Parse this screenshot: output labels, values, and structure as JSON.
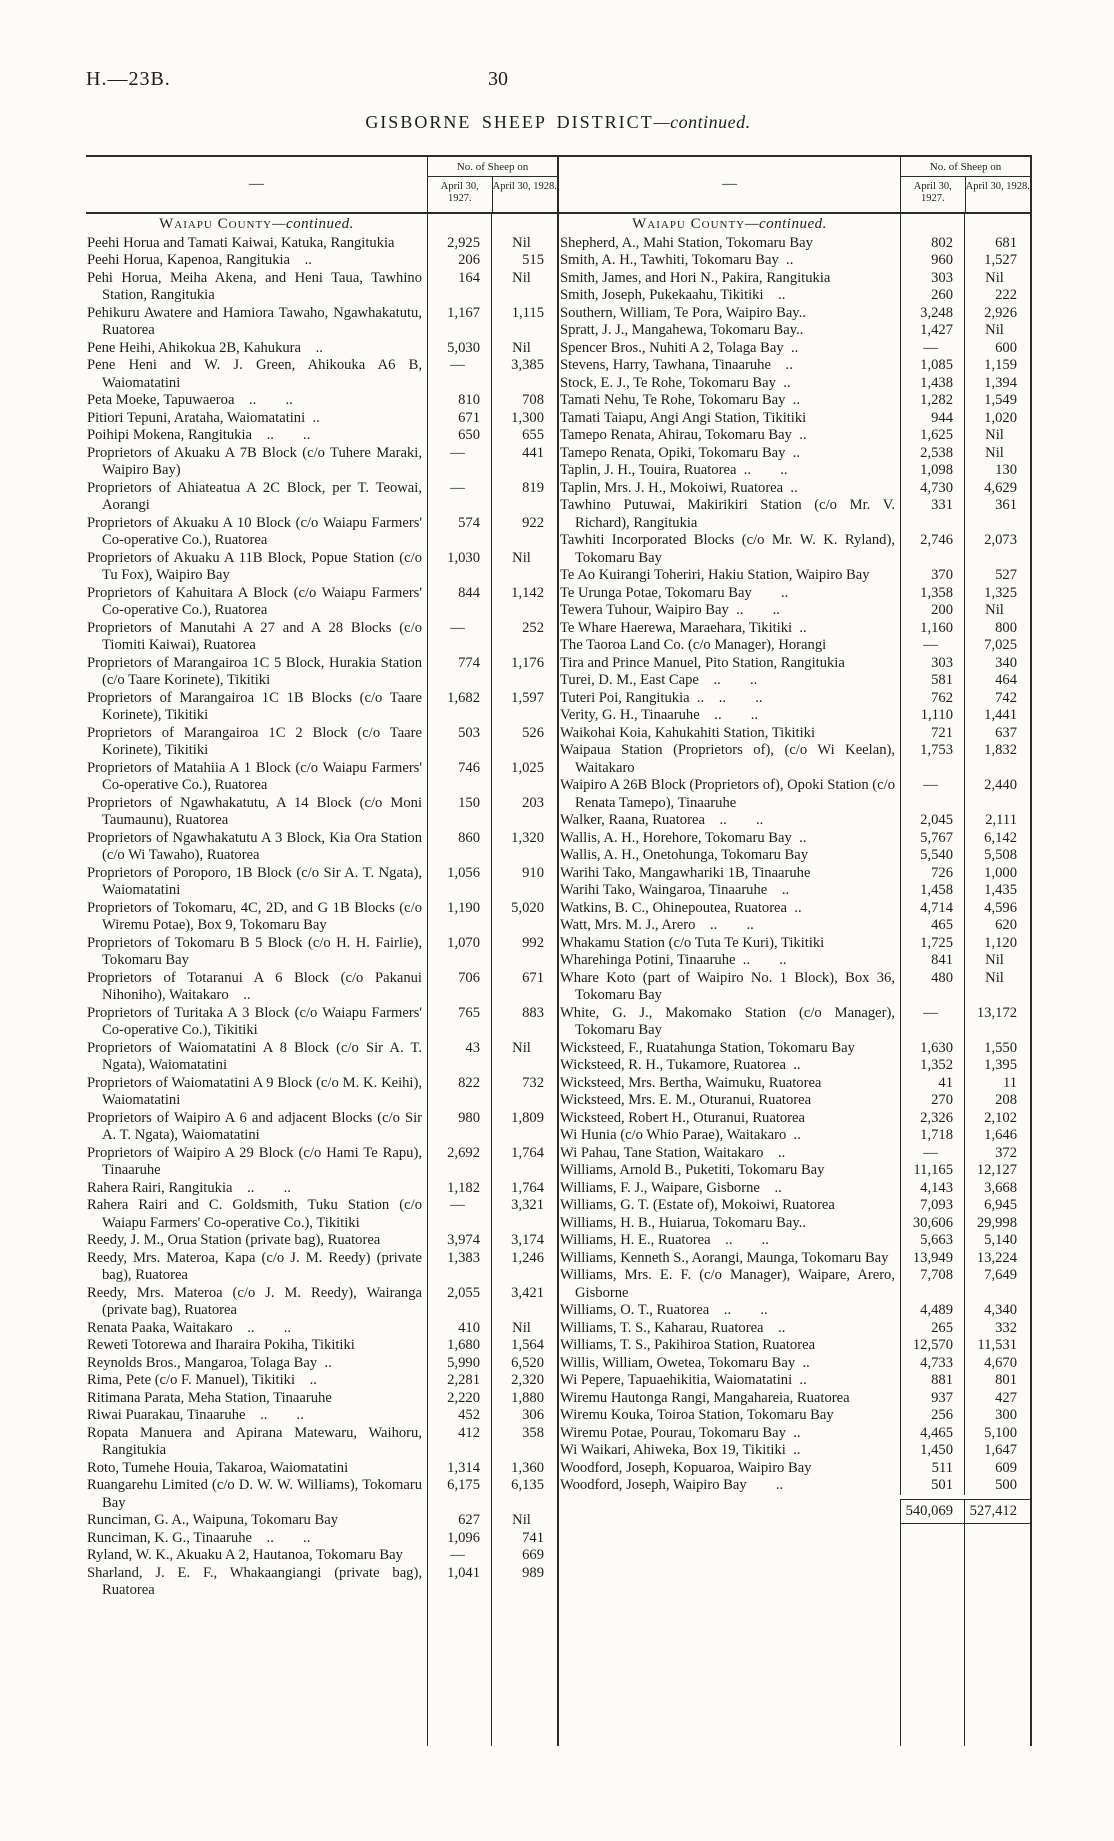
{
  "page": {
    "doc_ref": "H.—23B.",
    "page_number": "30",
    "title": "GISBORNE SHEEP DISTRICT",
    "title_continued": "—continued."
  },
  "table": {
    "name_header": "—",
    "sheep_on": "No. of Sheep on",
    "date_col_1": "April 30, 1927.",
    "date_col_2": "April 30, 1928.",
    "section": "Waiapu County",
    "section_continued": "—continued.",
    "left_rows": [
      {
        "name": "Peehi Horua and Tamati Kaiwai, Katuka, Rangitukia",
        "v1927": "2,925",
        "v1928": "Nil"
      },
      {
        "name": "Peehi Horua, Kapenoa, Rangitukia  ..",
        "v1927": "206",
        "v1928": "515"
      },
      {
        "name": "Pehi Horua, Meiha Akena, and Heni Taua, Tawhino Station, Rangitukia",
        "v1927": "164",
        "v1928": "Nil"
      },
      {
        "name": "Pehikuru Awatere and Hamiora Tawaho, Ngawhakatutu, Ruatorea",
        "v1927": "1,167",
        "v1928": "1,115"
      },
      {
        "name": "Pene Heihi, Ahikokua 2B, Kahukura  ..",
        "v1927": "5,030",
        "v1928": "Nil"
      },
      {
        "name": "Pene Heni and W. J. Green, Ahikouka A6 B, Waiomatatini",
        "v1927": "—",
        "v1928": "3,385"
      },
      {
        "name": "Peta Moeke, Tapuwaeroa ..  ..",
        "v1927": "810",
        "v1928": "708"
      },
      {
        "name": "Pitiori Tepuni, Arataha, Waiomatatini ..",
        "v1927": "671",
        "v1928": "1,300"
      },
      {
        "name": "Poihipi Mokena, Rangitukia ..  ..",
        "v1927": "650",
        "v1928": "655"
      },
      {
        "name": "Proprietors of Akuaku A 7B Block (c/o Tuhere Maraki, Waipiro Bay)",
        "v1927": "—",
        "v1928": "441"
      },
      {
        "name": "Proprietors of Ahiateatua A 2C Block, per T. Teowai, Aorangi",
        "v1927": "—",
        "v1928": "819"
      },
      {
        "name": "Proprietors of Akuaku A 10 Block (c/o Waiapu Farmers' Co-operative Co.), Ruatorea",
        "v1927": "574",
        "v1928": "922"
      },
      {
        "name": "Proprietors of Akuaku A 11B Block, Popue Station (c/o Tu Fox), Waipiro Bay",
        "v1927": "1,030",
        "v1928": "Nil"
      },
      {
        "name": "Proprietors of Kahuitara A Block (c/o Waiapu Farmers' Co-operative Co.), Ruatorea",
        "v1927": "844",
        "v1928": "1,142"
      },
      {
        "name": "Proprietors of Manutahi A 27 and A 28 Blocks (c/o Tiomiti Kaiwai), Ruatorea",
        "v1927": "—",
        "v1928": "252"
      },
      {
        "name": "Proprietors of Marangairoa 1C 5 Block, Hurakia Station (c/o Taare Korinete), Tikitiki",
        "v1927": "774",
        "v1928": "1,176"
      },
      {
        "name": "Proprietors of Marangairoa 1C 1B Blocks (c/o Taare Korinete), Tikitiki",
        "v1927": "1,682",
        "v1928": "1,597"
      },
      {
        "name": "Proprietors of Marangairoa 1C 2 Block (c/o Taare Korinete), Tikitiki",
        "v1927": "503",
        "v1928": "526"
      },
      {
        "name": "Proprietors of Matahiia A 1 Block (c/o Waiapu Farmers' Co-operative Co.), Ruatorea",
        "v1927": "746",
        "v1928": "1,025"
      },
      {
        "name": "Proprietors of Ngawhakatutu, A 14 Block (c/o Moni Taumaunu), Ruatorea",
        "v1927": "150",
        "v1928": "203"
      },
      {
        "name": "Proprietors of Ngawhakatutu A 3 Block, Kia Ora Station (c/o Wi Tawaho), Ruatorea",
        "v1927": "860",
        "v1928": "1,320"
      },
      {
        "name": "Proprietors of Poroporo, 1B Block (c/o Sir A. T. Ngata), Waiomatatini",
        "v1927": "1,056",
        "v1928": "910"
      },
      {
        "name": "Proprietors of Tokomaru, 4C, 2D, and G 1B Blocks (c/o Wiremu Potae), Box 9, Tokomaru Bay",
        "v1927": "1,190",
        "v1928": "5,020"
      },
      {
        "name": "Proprietors of Tokomaru B 5 Block (c/o H. H. Fairlie), Tokomaru Bay",
        "v1927": "1,070",
        "v1928": "992"
      },
      {
        "name": "Proprietors of Totaranui A 6 Block (c/o Pakanui Nihoniho), Waitakaro  ..",
        "v1927": "706",
        "v1928": "671"
      },
      {
        "name": "Proprietors of Turitaka A 3 Block (c/o Waiapu Farmers' Co-operative Co.), Tikitiki",
        "v1927": "765",
        "v1928": "883"
      },
      {
        "name": "Proprietors of Waiomatatini A 8 Block (c/o Sir A. T. Ngata), Waiomatatini",
        "v1927": "43",
        "v1928": "Nil"
      },
      {
        "name": "Proprietors of Waiomatatini A 9 Block (c/o M. K. Keihi), Waiomatatini",
        "v1927": "822",
        "v1928": "732"
      },
      {
        "name": "Proprietors of Waipiro A 6 and adjacent Blocks (c/o Sir A. T. Ngata), Waiomatatini",
        "v1927": "980",
        "v1928": "1,809"
      },
      {
        "name": "Proprietors of Waipiro A 29 Block (c/o Hami Te Rapu), Tinaaruhe",
        "v1927": "2,692",
        "v1928": "1,764"
      },
      {
        "name": "Rahera Rairi, Rangitukia ..  ..",
        "v1927": "1,182",
        "v1928": "1,764"
      },
      {
        "name": "Rahera Rairi and C. Goldsmith, Tuku Station (c/o Waiapu Farmers' Co-operative Co.), Tikitiki",
        "v1927": "—",
        "v1928": "3,321"
      },
      {
        "name": "Reedy, J. M., Orua Station (private bag), Ruatorea",
        "v1927": "3,974",
        "v1928": "3,174"
      },
      {
        "name": "Reedy, Mrs. Materoa, Kapa (c/o J. M. Reedy) (private bag), Ruatorea",
        "v1927": "1,383",
        "v1928": "1,246"
      },
      {
        "name": "Reedy, Mrs. Materoa (c/o J. M. Reedy), Wairanga (private bag), Ruatorea",
        "v1927": "2,055",
        "v1928": "3,421"
      },
      {
        "name": "Renata Paaka, Waitakaro ..  ..",
        "v1927": "410",
        "v1928": "Nil"
      },
      {
        "name": "Reweti Totorewa and Iharaira Pokiha, Tikitiki",
        "v1927": "1,680",
        "v1928": "1,564"
      },
      {
        "name": "Reynolds Bros., Mangaroa, Tolaga Bay ..",
        "v1927": "5,990",
        "v1928": "6,520"
      },
      {
        "name": "Rima, Pete (c/o F. Manuel), Tikitiki  ..",
        "v1927": "2,281",
        "v1928": "2,320"
      },
      {
        "name": "Ritimana Parata, Meha Station, Tinaaruhe",
        "v1927": "2,220",
        "v1928": "1,880"
      },
      {
        "name": "Riwai Puarakau, Tinaaruhe ..  ..",
        "v1927": "452",
        "v1928": "306"
      },
      {
        "name": "Ropata Manuera and Apirana Matewaru, Waihoru, Rangitukia",
        "v1927": "412",
        "v1928": "358"
      },
      {
        "name": "Roto, Tumehe Houia, Takaroa, Waiomatatini",
        "v1927": "1,314",
        "v1928": "1,360"
      },
      {
        "name": "Ruangarehu Limited (c/o D. W. W. Williams), Tokomaru Bay",
        "v1927": "6,175",
        "v1928": "6,135"
      },
      {
        "name": "Runciman, G. A., Waipuna, Tokomaru Bay",
        "v1927": "627",
        "v1928": "Nil"
      },
      {
        "name": "Runciman, K. G., Tinaaruhe ..  ..",
        "v1927": "1,096",
        "v1928": "741"
      },
      {
        "name": "Ryland, W. K., Akuaku A 2, Hautanoa, Tokomaru Bay",
        "v1927": "—",
        "v1928": "669"
      },
      {
        "name": "Sharland, J. E. F., Whakaangiangi (private bag), Ruatorea",
        "v1927": "1,041",
        "v1928": "989"
      }
    ],
    "right_rows": [
      {
        "name": "Shepherd, A., Mahi Station, Tokomaru Bay",
        "v1927": "802",
        "v1928": "681"
      },
      {
        "name": "Smith, A. H., Tawhiti, Tokomaru Bay ..",
        "v1927": "960",
        "v1928": "1,527"
      },
      {
        "name": "Smith, James, and Hori N., Pakira, Rangitukia",
        "v1927": "303",
        "v1928": "Nil"
      },
      {
        "name": "Smith, Joseph, Pukekaahu, Tikitiki  ..",
        "v1927": "260",
        "v1928": "222"
      },
      {
        "name": "Southern, William, Te Pora, Waipiro Bay..",
        "v1927": "3,248",
        "v1928": "2,926"
      },
      {
        "name": "Spratt, J. J., Mangahewa, Tokomaru Bay..",
        "v1927": "1,427",
        "v1928": "Nil"
      },
      {
        "name": "Spencer Bros., Nuhiti A 2, Tolaga Bay ..",
        "v1927": "—",
        "v1928": "600"
      },
      {
        "name": "Stevens, Harry, Tawhana, Tinaaruhe  ..",
        "v1927": "1,085",
        "v1928": "1,159"
      },
      {
        "name": "Stock, E. J., Te Rohe, Tokomaru Bay ..",
        "v1927": "1,438",
        "v1928": "1,394"
      },
      {
        "name": "Tamati Nehu, Te Rohe, Tokomaru Bay ..",
        "v1927": "1,282",
        "v1928": "1,549"
      },
      {
        "name": "Tamati Taiapu, Angi Angi Station, Tikitiki",
        "v1927": "944",
        "v1928": "1,020"
      },
      {
        "name": "Tamepo Renata, Ahirau, Tokomaru Bay ..",
        "v1927": "1,625",
        "v1928": "Nil"
      },
      {
        "name": "Tamepo Renata, Opiki, Tokomaru Bay ..",
        "v1927": "2,538",
        "v1928": "Nil"
      },
      {
        "name": "Taplin, J. H., Touira, Ruatorea ..  ..",
        "v1927": "1,098",
        "v1928": "130"
      },
      {
        "name": "Taplin, Mrs. J. H., Mokoiwi, Ruatorea ..",
        "v1927": "4,730",
        "v1928": "4,629"
      },
      {
        "name": "Tawhino Putuwai, Makirikiri Station (c/o Mr. V. Richard), Rangitukia",
        "v1927": "331",
        "v1928": "361"
      },
      {
        "name": "Tawhiti Incorporated Blocks (c/o Mr. W. K. Ryland), Tokomaru Bay",
        "v1927": "2,746",
        "v1928": "2,073"
      },
      {
        "name": "Te Ao Kuirangi Toheriri, Hakiu Station, Waipiro Bay",
        "v1927": "370",
        "v1928": "527"
      },
      {
        "name": "Te Urunga Potae, Tokomaru Bay  ..",
        "v1927": "1,358",
        "v1928": "1,325"
      },
      {
        "name": "Tewera Tuhour, Waipiro Bay ..  ..",
        "v1927": "200",
        "v1928": "Nil"
      },
      {
        "name": "Te Whare Haerewa, Maraehara, Tikitiki ..",
        "v1927": "1,160",
        "v1928": "800"
      },
      {
        "name": "The Taoroa Land Co. (c/o Manager), Horangi",
        "v1927": "—",
        "v1928": "7,025"
      },
      {
        "name": "Tira and Prince Manuel, Pito Station, Rangitukia",
        "v1927": "303",
        "v1928": "340"
      },
      {
        "name": "Turei, D. M., East Cape ..  ..",
        "v1927": "581",
        "v1928": "464"
      },
      {
        "name": "Tuteri Poi, Rangitukia .. ..  ..",
        "v1927": "762",
        "v1928": "742"
      },
      {
        "name": "Verity, G. H., Tinaaruhe ..  ..",
        "v1927": "1,110",
        "v1928": "1,441"
      },
      {
        "name": "Waikohai Koia, Kahukahiti Station, Tikitiki",
        "v1927": "721",
        "v1928": "637"
      },
      {
        "name": "Waipaua Station (Proprietors of), (c/o Wi Keelan), Waitakaro",
        "v1927": "1,753",
        "v1928": "1,832"
      },
      {
        "name": "Waipiro A 26B Block (Proprietors of), Opoki Station (c/o Renata Tamepo), Tinaaruhe",
        "v1927": "—",
        "v1928": "2,440"
      },
      {
        "name": "Walker, Raana, Ruatorea ..  ..",
        "v1927": "2,045",
        "v1928": "2,111"
      },
      {
        "name": "Wallis, A. H., Horehore, Tokomaru Bay ..",
        "v1927": "5,767",
        "v1928": "6,142"
      },
      {
        "name": "Wallis, A. H., Onetohunga, Tokomaru Bay",
        "v1927": "5,540",
        "v1928": "5,508"
      },
      {
        "name": "Warihi Tako, Mangawhariki 1B, Tinaaruhe",
        "v1927": "726",
        "v1928": "1,000"
      },
      {
        "name": "Warihi Tako, Waingaroa, Tinaaruhe  ..",
        "v1927": "1,458",
        "v1928": "1,435"
      },
      {
        "name": "Watkins, B. C., Ohinepoutea, Ruatorea ..",
        "v1927": "4,714",
        "v1928": "4,596"
      },
      {
        "name": "Watt, Mrs. M. J., Arero ..  ..",
        "v1927": "465",
        "v1928": "620"
      },
      {
        "name": "Whakamu Station (c/o Tuta Te Kuri), Tikitiki",
        "v1927": "1,725",
        "v1928": "1,120"
      },
      {
        "name": "Wharehinga Potini, Tinaaruhe ..  ..",
        "v1927": "841",
        "v1928": "Nil"
      },
      {
        "name": "Whare Koto (part of Waipiro No. 1 Block), Box 36, Tokomaru Bay",
        "v1927": "480",
        "v1928": "Nil"
      },
      {
        "name": "White, G. J., Makomako Station (c/o Manager), Tokomaru Bay",
        "v1927": "—",
        "v1928": "13,172"
      },
      {
        "name": "Wicksteed, F., Ruatahunga Station, Tokomaru Bay",
        "v1927": "1,630",
        "v1928": "1,550"
      },
      {
        "name": "Wicksteed, R. H., Tukamore, Ruatorea ..",
        "v1927": "1,352",
        "v1928": "1,395"
      },
      {
        "name": "Wicksteed, Mrs. Bertha, Waimuku, Ruatorea",
        "v1927": "41",
        "v1928": "11"
      },
      {
        "name": "Wicksteed, Mrs. E. M., Oturanui, Ruatorea",
        "v1927": "270",
        "v1928": "208"
      },
      {
        "name": "Wicksteed, Robert H., Oturanui, Ruatorea",
        "v1927": "2,326",
        "v1928": "2,102"
      },
      {
        "name": "Wi Hunia (c/o Whio Parae), Waitakaro ..",
        "v1927": "1,718",
        "v1928": "1,646"
      },
      {
        "name": "Wi Pahau, Tane Station, Waitakaro  ..",
        "v1927": "—",
        "v1928": "372"
      },
      {
        "name": "Williams, Arnold B., Puketiti, Tokomaru Bay",
        "v1927": "11,165",
        "v1928": "12,127"
      },
      {
        "name": "Williams, F. J., Waipare, Gisborne ..",
        "v1927": "4,143",
        "v1928": "3,668"
      },
      {
        "name": "Williams, G. T. (Estate of), Mokoiwi, Ruatorea",
        "v1927": "7,093",
        "v1928": "6,945"
      },
      {
        "name": "Williams, H. B., Huiarua, Tokomaru Bay..",
        "v1927": "30,606",
        "v1928": "29,998"
      },
      {
        "name": "Williams, H. E., Ruatorea ..  ..",
        "v1927": "5,663",
        "v1928": "5,140"
      },
      {
        "name": "Williams, Kenneth S., Aorangi, Maunga, Tokomaru Bay",
        "v1927": "13,949",
        "v1928": "13,224"
      },
      {
        "name": "Williams, Mrs. E. F. (c/o Manager), Waipare, Arero, Gisborne",
        "v1927": "7,708",
        "v1928": "7,649"
      },
      {
        "name": "Williams, O. T., Ruatorea ..  ..",
        "v1927": "4,489",
        "v1928": "4,340"
      },
      {
        "name": "Williams, T. S., Kaharau, Ruatorea  ..",
        "v1927": "265",
        "v1928": "332"
      },
      {
        "name": "Williams, T. S., Pakihiroa Station, Ruatorea",
        "v1927": "12,570",
        "v1928": "11,531"
      },
      {
        "name": "Willis, William, Owetea, Tokomaru Bay ..",
        "v1927": "4,733",
        "v1928": "4,670"
      },
      {
        "name": "Wi Pepere, Tapuaehikitia, Waiomatatini ..",
        "v1927": "881",
        "v1928": "801"
      },
      {
        "name": "Wiremu Hautonga Rangi, Mangahareia, Ruatorea",
        "v1927": "937",
        "v1928": "427"
      },
      {
        "name": "Wiremu Kouka, Toiroa Station, Tokomaru Bay",
        "v1927": "256",
        "v1928": "300"
      },
      {
        "name": "Wiremu Potae, Pourau, Tokomaru Bay ..",
        "v1927": "4,465",
        "v1928": "5,100"
      },
      {
        "name": "Wi Waikari, Ahiweka, Box 19, Tikitiki ..",
        "v1927": "1,450",
        "v1928": "1,647"
      },
      {
        "name": "Woodford, Joseph, Kopuaroa, Waipiro Bay",
        "v1927": "511",
        "v1928": "609"
      },
      {
        "name": "Woodford, Joseph, Waipiro Bay  ..",
        "v1927": "501",
        "v1928": "500"
      }
    ],
    "totals": {
      "v1927": "540,069",
      "v1928": "527,412"
    }
  }
}
